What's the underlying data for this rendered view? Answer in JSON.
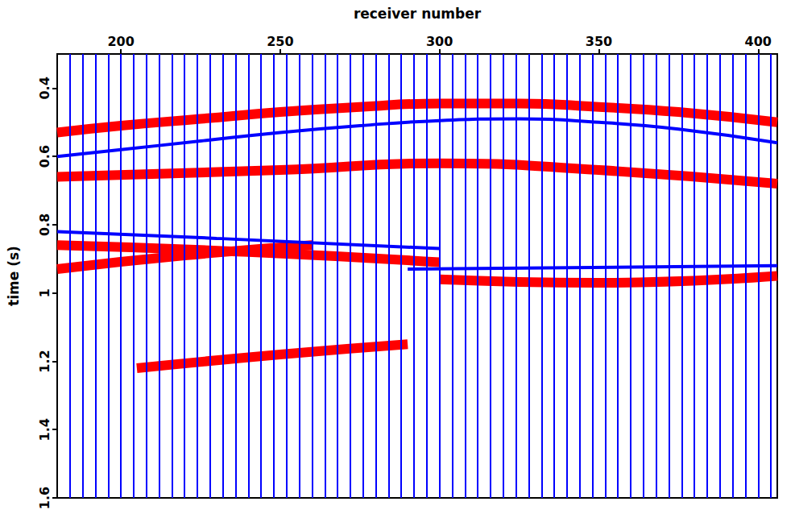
{
  "chart_data": {
    "type": "wiggle",
    "xlabel": "receiver number",
    "ylabel": "time (s)",
    "xlim": [
      180,
      406
    ],
    "xticks": [
      200,
      250,
      300,
      350,
      400
    ],
    "ylim": [
      0.3,
      1.6
    ],
    "yticks": [
      0.4,
      0.6,
      0.8,
      1,
      1.2,
      1.4,
      1.6
    ],
    "traces": {
      "color": "#0000ff",
      "x": [
        184,
        188,
        192,
        196,
        200,
        204,
        208,
        212,
        216,
        220,
        224,
        228,
        232,
        236,
        240,
        244,
        248,
        252,
        256,
        260,
        264,
        268,
        272,
        276,
        280,
        284,
        288,
        292,
        296,
        300,
        304,
        308,
        312,
        316,
        320,
        324,
        328,
        332,
        336,
        340,
        344,
        348,
        352,
        356,
        360,
        364,
        368,
        372,
        376,
        380,
        384,
        388,
        392,
        396,
        400,
        404
      ]
    },
    "events": [
      {
        "color": "#ff0000",
        "x": [
          180,
          200,
          225,
          250,
          275,
          300,
          325,
          350,
          375,
          406
        ],
        "values": [
          0.53,
          0.51,
          0.49,
          0.47,
          0.455,
          0.445,
          0.445,
          0.455,
          0.47,
          0.5
        ]
      },
      {
        "color": "#0000ff",
        "x": [
          180,
          200,
          225,
          250,
          275,
          300,
          325,
          350,
          375,
          406
        ],
        "values": [
          0.6,
          0.58,
          0.555,
          0.53,
          0.51,
          0.495,
          0.49,
          0.5,
          0.52,
          0.56
        ]
      },
      {
        "color": "#ff0000",
        "x": [
          180,
          250,
          300,
          350,
          406
        ],
        "values": [
          0.66,
          0.64,
          0.62,
          0.64,
          0.68
        ]
      },
      {
        "color": "#0000ff",
        "x": [
          180,
          230,
          300
        ],
        "values": [
          0.82,
          0.84,
          0.87
        ]
      },
      {
        "color": "#ff0000",
        "x": [
          180,
          240,
          300
        ],
        "values": [
          0.86,
          0.88,
          0.91
        ]
      },
      {
        "color": "#ff0000",
        "x": [
          180,
          220,
          260
        ],
        "values": [
          0.93,
          0.89,
          0.86
        ]
      },
      {
        "color": "#ff0000",
        "x": [
          300,
          350,
          406
        ],
        "values": [
          0.96,
          0.97,
          0.95
        ]
      },
      {
        "color": "#0000ff",
        "x": [
          290,
          406
        ],
        "values": [
          0.93,
          0.92
        ]
      },
      {
        "color": "#ff0000",
        "x": [
          205,
          250,
          290
        ],
        "values": [
          1.22,
          1.18,
          1.15
        ]
      }
    ]
  }
}
